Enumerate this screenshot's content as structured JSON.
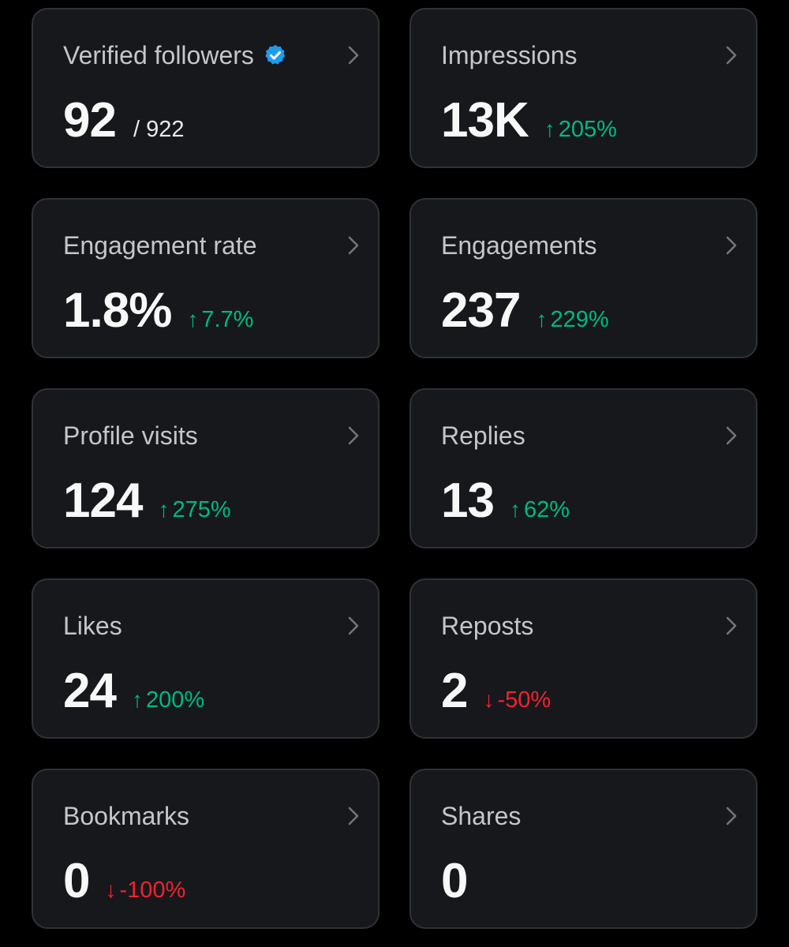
{
  "colors": {
    "background": "#000000",
    "card": "#16181c",
    "border": "#2f3336",
    "up": "#00ba7c",
    "down": "#f4212e",
    "verified": "#1d9bf0"
  },
  "cards": [
    {
      "title": "Verified followers",
      "value": "92",
      "total": "/ 922",
      "icon": "verified-badge-icon"
    },
    {
      "title": "Impressions",
      "value": "13K",
      "delta": "205%",
      "direction": "up"
    },
    {
      "title": "Engagement rate",
      "value": "1.8%",
      "delta": "7.7%",
      "direction": "up"
    },
    {
      "title": "Engagements",
      "value": "237",
      "delta": "229%",
      "direction": "up"
    },
    {
      "title": "Profile visits",
      "value": "124",
      "delta": "275%",
      "direction": "up"
    },
    {
      "title": "Replies",
      "value": "13",
      "delta": "62%",
      "direction": "up"
    },
    {
      "title": "Likes",
      "value": "24",
      "delta": "200%",
      "direction": "up"
    },
    {
      "title": "Reposts",
      "value": "2",
      "delta": "-50%",
      "direction": "down"
    },
    {
      "title": "Bookmarks",
      "value": "0",
      "delta": "-100%",
      "direction": "down"
    },
    {
      "title": "Shares",
      "value": "0"
    }
  ]
}
